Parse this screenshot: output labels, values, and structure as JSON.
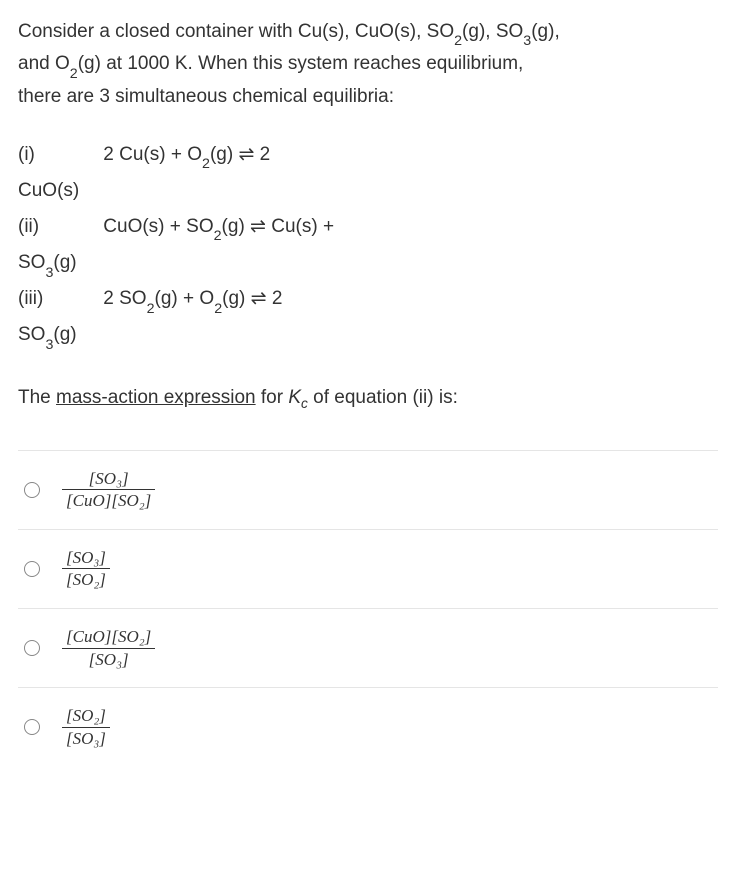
{
  "intro": {
    "line1_a": "Consider a closed container with Cu(s), CuO(s), SO",
    "line1_b": "(g), SO",
    "line1_c": "(g),",
    "line2_a": "and O",
    "line2_b": "(g) at 1000 K.  When this system reaches equilibrium,",
    "line3": "there are 3 simultaneous chemical equilibria:"
  },
  "eq": {
    "i_label": "(i)",
    "i_body_a": "2 Cu(s) + O",
    "i_body_b": "(g) ⇌ 2",
    "i_cont": "CuO(s)",
    "ii_label": "(ii)",
    "ii_body_a": "CuO(s) + SO",
    "ii_body_b": "(g) ⇌ Cu(s) +",
    "ii_cont_a": "SO",
    "ii_cont_b": "(g)",
    "iii_label": "(iii)",
    "iii_body_a": "2 SO",
    "iii_body_b": "(g) + O",
    "iii_body_c": "(g) ⇌ 2",
    "iii_cont_a": "SO",
    "iii_cont_b": "(g)"
  },
  "prompt": {
    "a": "The ",
    "underline": "mass-action expression",
    "b": " for ",
    "kc_k": "K",
    "kc_c": "c",
    "c": " of equation (ii) is:"
  },
  "opt1": {
    "num": "[SO₃]",
    "den": "[CuO][SO₂]"
  },
  "opt2": {
    "num": "[SO₃]",
    "den": "[SO₂]"
  },
  "opt3": {
    "num": "[CuO][SO₂]",
    "den": "[SO₃]"
  },
  "opt4": {
    "num": "[SO₂]",
    "den": "[SO₃]"
  },
  "subs": {
    "two": "2",
    "three": "3"
  }
}
